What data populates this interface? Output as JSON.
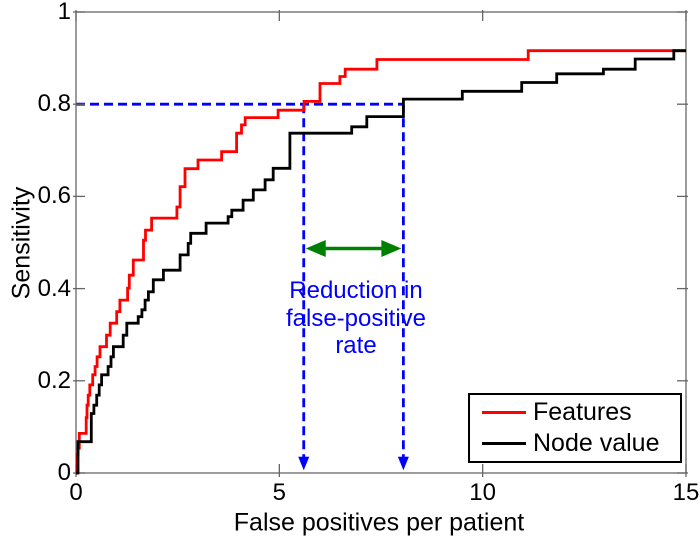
{
  "chart_data": {
    "type": "line",
    "subtype": "step-froc",
    "title": "",
    "xlabel": "False positives per patient",
    "ylabel": "Sensitivity",
    "xlim": [
      0,
      15
    ],
    "ylim": [
      0,
      1
    ],
    "grid": false,
    "x_ticks": [
      0,
      5,
      10,
      15
    ],
    "x_tick_labels": [
      "0",
      "5",
      "10",
      "15"
    ],
    "y_ticks": [
      0,
      0.2,
      0.4,
      0.6,
      0.8,
      1
    ],
    "y_tick_labels": [
      "0",
      "0.2",
      "0.4",
      "0.6",
      "0.8",
      "1"
    ],
    "legend_position": "lower right",
    "series": [
      {
        "name": "Features",
        "color": "#ff0000",
        "points": [
          [
            0.03,
            0.04
          ],
          [
            0.05,
            0.054
          ],
          [
            0.08,
            0.086
          ],
          [
            0.25,
            0.12
          ],
          [
            0.27,
            0.147
          ],
          [
            0.3,
            0.169
          ],
          [
            0.34,
            0.191
          ],
          [
            0.41,
            0.213
          ],
          [
            0.47,
            0.231
          ],
          [
            0.52,
            0.252
          ],
          [
            0.59,
            0.274
          ],
          [
            0.75,
            0.299
          ],
          [
            0.84,
            0.325
          ],
          [
            1.0,
            0.35
          ],
          [
            1.08,
            0.375
          ],
          [
            1.27,
            0.401
          ],
          [
            1.31,
            0.429
          ],
          [
            1.41,
            0.462
          ],
          [
            1.66,
            0.505
          ],
          [
            1.71,
            0.527
          ],
          [
            1.86,
            0.553
          ],
          [
            2.48,
            0.577
          ],
          [
            2.56,
            0.621
          ],
          [
            2.68,
            0.66
          ],
          [
            3.0,
            0.679
          ],
          [
            3.58,
            0.697
          ],
          [
            3.95,
            0.737
          ],
          [
            4.07,
            0.755
          ],
          [
            4.16,
            0.771
          ],
          [
            4.97,
            0.787
          ],
          [
            5.61,
            0.806
          ],
          [
            6.0,
            0.845
          ],
          [
            6.49,
            0.86
          ],
          [
            6.62,
            0.876
          ],
          [
            7.4,
            0.897
          ],
          [
            11.12,
            0.916
          ]
        ]
      },
      {
        "name": "Node value",
        "color": "#000000",
        "points": [
          [
            0.05,
            0.068
          ],
          [
            0.376,
            0.129
          ],
          [
            0.44,
            0.147
          ],
          [
            0.51,
            0.169
          ],
          [
            0.57,
            0.191
          ],
          [
            0.63,
            0.213
          ],
          [
            0.79,
            0.231
          ],
          [
            0.86,
            0.252
          ],
          [
            0.92,
            0.274
          ],
          [
            1.16,
            0.299
          ],
          [
            1.25,
            0.325
          ],
          [
            1.53,
            0.339
          ],
          [
            1.62,
            0.354
          ],
          [
            1.7,
            0.375
          ],
          [
            1.78,
            0.393
          ],
          [
            1.9,
            0.419
          ],
          [
            2.15,
            0.44
          ],
          [
            2.56,
            0.473
          ],
          [
            2.76,
            0.498
          ],
          [
            2.82,
            0.52
          ],
          [
            3.2,
            0.542
          ],
          [
            3.74,
            0.556
          ],
          [
            3.83,
            0.57
          ],
          [
            4.11,
            0.592
          ],
          [
            4.36,
            0.614
          ],
          [
            4.65,
            0.636
          ],
          [
            4.85,
            0.661
          ],
          [
            5.26,
            0.737
          ],
          [
            6.78,
            0.751
          ],
          [
            7.15,
            0.773
          ],
          [
            8.05,
            0.811
          ],
          [
            9.5,
            0.828
          ],
          [
            10.96,
            0.847
          ],
          [
            11.82,
            0.866
          ],
          [
            12.97,
            0.876
          ],
          [
            13.75,
            0.898
          ],
          [
            14.7,
            0.916
          ]
        ]
      }
    ],
    "annotations": {
      "threshold_line": {
        "y": 0.8,
        "x0": 0,
        "x1": 8.05,
        "color": "#0000ff",
        "style": "dashed"
      },
      "drop_arrows": [
        {
          "x": 5.6,
          "y_top": 0.8,
          "y_tip": 0.006,
          "color": "#0000ff",
          "style": "dashed"
        },
        {
          "x": 8.05,
          "y_top": 0.8,
          "y_tip": 0.006,
          "color": "#0000ff",
          "style": "dashed"
        }
      ],
      "reduction_arrow": {
        "y": 0.487,
        "x0": 5.6,
        "x1": 8.05,
        "color": "#008000",
        "double_headed": true
      },
      "label": {
        "lines": [
          "Reduction in",
          "false-positive",
          "rate"
        ],
        "color": "#0000ff",
        "x": 6.9,
        "y": 0.345
      }
    }
  },
  "legend": {
    "items": [
      {
        "label": "Features",
        "color": "#ff0000"
      },
      {
        "label": "Node value",
        "color": "#000000"
      }
    ]
  }
}
